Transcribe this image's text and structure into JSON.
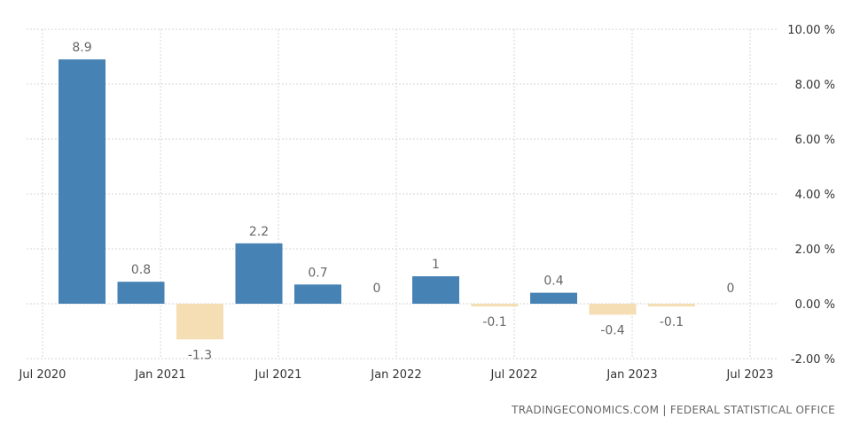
{
  "source_text": "TRADINGECONOMICS.COM  |  FEDERAL STATISTICAL OFFICE",
  "chart_data": {
    "type": "bar",
    "title": "",
    "xlabel": "",
    "ylabel": "",
    "ylim": [
      -2,
      10
    ],
    "y_ticks": [
      10,
      8,
      6,
      4,
      2,
      0,
      -2
    ],
    "y_tick_labels": [
      "10.00 %",
      "8.00 %",
      "6.00 %",
      "4.00 %",
      "2.00 %",
      "0.00 %",
      "-2.00 %"
    ],
    "x_ticks": [
      "Jul 2020",
      "Jan 2021",
      "Jul 2021",
      "Jan 2022",
      "Jul 2022",
      "Jan 2023",
      "Jul 2023"
    ],
    "categories": [
      "Q3 2020",
      "Q4 2020",
      "Q1 2021",
      "Q2 2021",
      "Q3 2021",
      "Q4 2021",
      "Q1 2022",
      "Q2 2022",
      "Q3 2022",
      "Q4 2022",
      "Q1 2023",
      "Q2 2023"
    ],
    "values": [
      8.9,
      0.8,
      -1.3,
      2.2,
      0.7,
      0,
      1,
      -0.1,
      0.4,
      -0.4,
      -0.1,
      0
    ],
    "value_labels": [
      "8.9",
      "0.8",
      "-1.3",
      "2.2",
      "0.7",
      "0",
      "1",
      "-0.1",
      "0.4",
      "-0.4",
      "-0.1",
      "0"
    ],
    "grid": true,
    "y_axis_position": "right",
    "colors": {
      "positive": "#4682b4",
      "negative": "#f5deb3"
    }
  }
}
